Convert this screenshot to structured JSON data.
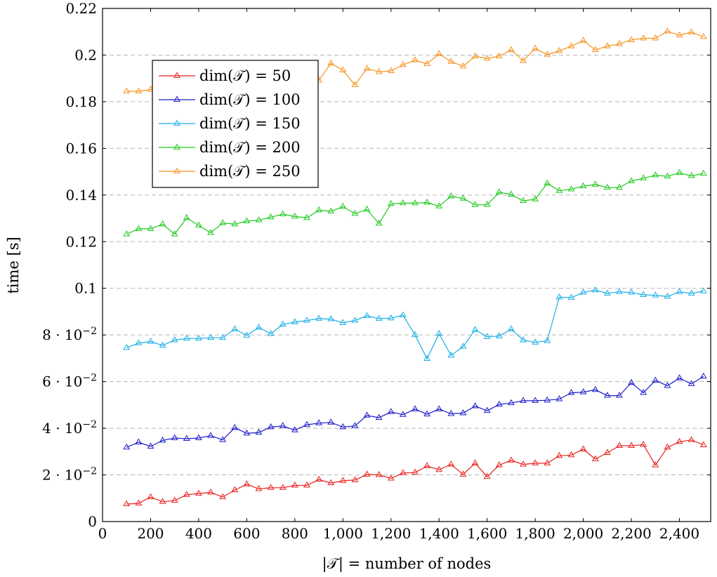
{
  "chart_data": {
    "type": "line",
    "title": "",
    "xlabel": "|𝒯| = number of nodes",
    "ylabel": "time [s]",
    "xlim": [
      0,
      2530
    ],
    "ylim": [
      0,
      0.22
    ],
    "grid": "horizontal dashed",
    "legend_position": "upper-left",
    "marker": "open-triangle",
    "x_ticks": [
      {
        "value": 0,
        "label": "0"
      },
      {
        "value": 200,
        "label": "200"
      },
      {
        "value": 400,
        "label": "400"
      },
      {
        "value": 600,
        "label": "600"
      },
      {
        "value": 800,
        "label": "800"
      },
      {
        "value": 1000,
        "label": "1,000"
      },
      {
        "value": 1200,
        "label": "1,200"
      },
      {
        "value": 1400,
        "label": "1,400"
      },
      {
        "value": 1600,
        "label": "1,600"
      },
      {
        "value": 1800,
        "label": "1,800"
      },
      {
        "value": 2000,
        "label": "2,000"
      },
      {
        "value": 2200,
        "label": "2,200"
      },
      {
        "value": 2400,
        "label": "2,400"
      }
    ],
    "y_ticks": [
      {
        "value": 0,
        "label": "0",
        "sup": ""
      },
      {
        "value": 0.02,
        "label": "2 · 10",
        "sup": "−2"
      },
      {
        "value": 0.04,
        "label": "4 · 10",
        "sup": "−2"
      },
      {
        "value": 0.06,
        "label": "6 · 10",
        "sup": "−2"
      },
      {
        "value": 0.08,
        "label": "8 · 10",
        "sup": "−2"
      },
      {
        "value": 0.1,
        "label": "0.1",
        "sup": ""
      },
      {
        "value": 0.12,
        "label": "0.12",
        "sup": ""
      },
      {
        "value": 0.14,
        "label": "0.14",
        "sup": ""
      },
      {
        "value": 0.16,
        "label": "0.16",
        "sup": ""
      },
      {
        "value": 0.18,
        "label": "0.18",
        "sup": ""
      },
      {
        "value": 0.2,
        "label": "0.2",
        "sup": ""
      },
      {
        "value": 0.22,
        "label": "0.22",
        "sup": ""
      }
    ],
    "x": [
      100,
      150,
      200,
      250,
      300,
      350,
      400,
      450,
      500,
      550,
      600,
      650,
      700,
      750,
      800,
      850,
      900,
      950,
      1000,
      1050,
      1100,
      1150,
      1200,
      1250,
      1300,
      1350,
      1400,
      1450,
      1500,
      1550,
      1600,
      1650,
      1700,
      1750,
      1800,
      1850,
      1900,
      1950,
      2000,
      2050,
      2100,
      2150,
      2200,
      2250,
      2300,
      2350,
      2400,
      2450,
      2500
    ],
    "series": [
      {
        "name": "dim(𝒯) = 50",
        "color": "#e8201c",
        "values": [
          0.0075,
          0.0078,
          0.0105,
          0.0085,
          0.009,
          0.0115,
          0.012,
          0.0125,
          0.0105,
          0.0135,
          0.016,
          0.014,
          0.0145,
          0.0145,
          0.0155,
          0.0155,
          0.018,
          0.0165,
          0.0175,
          0.0178,
          0.0202,
          0.02,
          0.0185,
          0.0208,
          0.021,
          0.0238,
          0.0222,
          0.0245,
          0.0202,
          0.025,
          0.0192,
          0.0242,
          0.0262,
          0.0245,
          0.025,
          0.025,
          0.0282,
          0.0285,
          0.031,
          0.0268,
          0.0295,
          0.0325,
          0.0325,
          0.033,
          0.0242,
          0.0318,
          0.0342,
          0.035,
          0.0328
        ]
      },
      {
        "name": "dim(𝒯) = 100",
        "color": "#1c1cc8",
        "values": [
          0.0318,
          0.034,
          0.0322,
          0.0348,
          0.0358,
          0.0355,
          0.0358,
          0.0368,
          0.035,
          0.0402,
          0.0378,
          0.0382,
          0.0405,
          0.041,
          0.0392,
          0.0415,
          0.0422,
          0.0425,
          0.0405,
          0.041,
          0.0455,
          0.0445,
          0.047,
          0.0458,
          0.0482,
          0.046,
          0.0482,
          0.0462,
          0.0465,
          0.0495,
          0.0475,
          0.0502,
          0.0508,
          0.0518,
          0.0518,
          0.052,
          0.0525,
          0.0552,
          0.0555,
          0.0565,
          0.054,
          0.054,
          0.0595,
          0.0552,
          0.0605,
          0.0582,
          0.0615,
          0.059,
          0.0622
        ]
      },
      {
        "name": "dim(𝒯) = 150",
        "color": "#19aee6",
        "values": [
          0.0745,
          0.0765,
          0.0772,
          0.0755,
          0.0778,
          0.0785,
          0.0785,
          0.0788,
          0.0788,
          0.0825,
          0.0798,
          0.0832,
          0.0805,
          0.0845,
          0.0855,
          0.0862,
          0.087,
          0.0868,
          0.0852,
          0.0862,
          0.0882,
          0.087,
          0.0872,
          0.0885,
          0.08,
          0.0698,
          0.0805,
          0.0712,
          0.075,
          0.0822,
          0.0792,
          0.0795,
          0.0825,
          0.0778,
          0.0768,
          0.0775,
          0.0962,
          0.096,
          0.0982,
          0.0992,
          0.0978,
          0.0985,
          0.0982,
          0.0972,
          0.097,
          0.0965,
          0.0985,
          0.0978,
          0.0988
        ]
      },
      {
        "name": "dim(𝒯) = 200",
        "color": "#1ec81e",
        "values": [
          0.1232,
          0.1255,
          0.1255,
          0.1275,
          0.1232,
          0.1302,
          0.127,
          0.1238,
          0.128,
          0.1275,
          0.1288,
          0.1292,
          0.1305,
          0.1318,
          0.1308,
          0.1302,
          0.1335,
          0.133,
          0.135,
          0.132,
          0.1338,
          0.1278,
          0.1362,
          0.1365,
          0.1365,
          0.1368,
          0.1352,
          0.1395,
          0.1385,
          0.1358,
          0.1358,
          0.1412,
          0.1402,
          0.1375,
          0.1382,
          0.145,
          0.1418,
          0.1425,
          0.1438,
          0.1445,
          0.1432,
          0.1432,
          0.146,
          0.1472,
          0.1485,
          0.148,
          0.1495,
          0.1482,
          0.1492
        ]
      },
      {
        "name": "dim(𝒯) = 250",
        "color": "#f7921e",
        "values": [
          0.1845,
          0.1845,
          0.1852,
          0.1855,
          0.1855,
          0.1858,
          0.1862,
          0.1865,
          0.1868,
          0.1872,
          0.1875,
          0.1878,
          0.1882,
          0.1885,
          0.1888,
          0.1892,
          0.1892,
          0.1965,
          0.1935,
          0.1872,
          0.1942,
          0.1928,
          0.1932,
          0.1958,
          0.1978,
          0.1962,
          0.2005,
          0.1972,
          0.1952,
          0.1995,
          0.1985,
          0.1995,
          0.2022,
          0.1975,
          0.2028,
          0.2002,
          0.2018,
          0.2038,
          0.2062,
          0.2022,
          0.2038,
          0.2048,
          0.2065,
          0.2072,
          0.2072,
          0.2102,
          0.2085,
          0.2098,
          0.2078
        ]
      }
    ]
  }
}
